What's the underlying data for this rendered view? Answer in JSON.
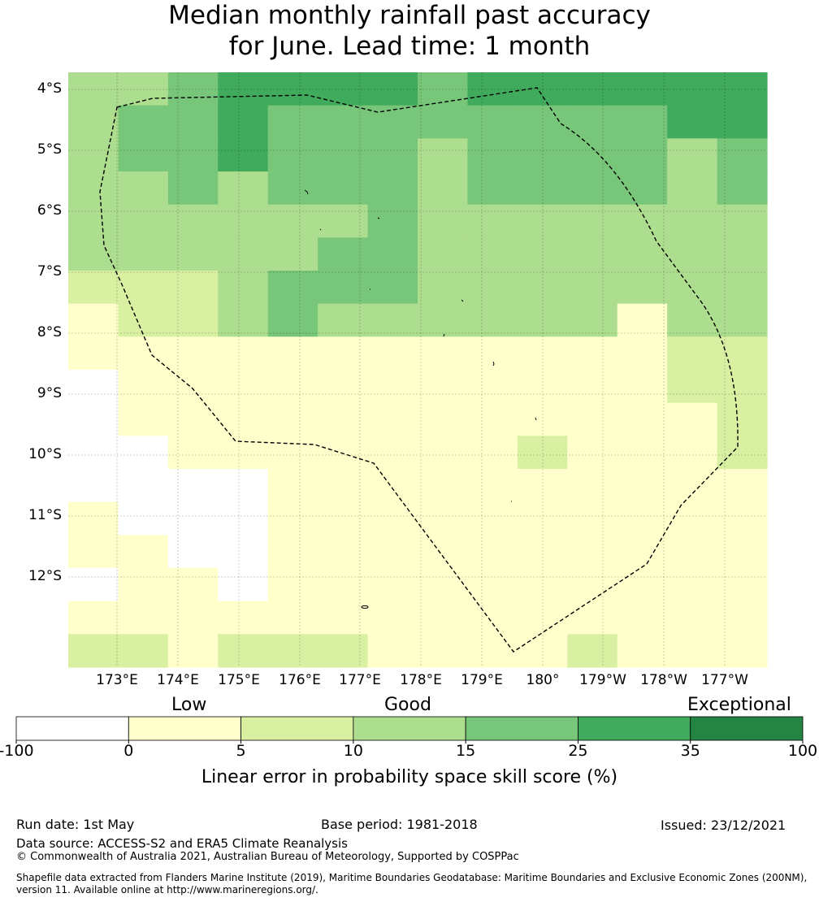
{
  "title": {
    "line1": "Median monthly rainfall past accuracy",
    "line2": "for June. Lead time: 1 month"
  },
  "map": {
    "lat_labels": [
      "4°S",
      "5°S",
      "6°S",
      "7°S",
      "8°S",
      "9°S",
      "10°S",
      "11°S",
      "12°S"
    ],
    "lon_labels": [
      "173°E",
      "174°E",
      "175°E",
      "176°E",
      "177°E",
      "178°E",
      "179°E",
      "180°",
      "179°W",
      "178°W",
      "177°W"
    ],
    "grid": {
      "rows": 18,
      "cols": 14,
      "cell_classes": [
        [
          3,
          3,
          4,
          5,
          5,
          5,
          5,
          4,
          5,
          5,
          5,
          5,
          5,
          5
        ],
        [
          3,
          4,
          4,
          5,
          4,
          4,
          4,
          4,
          4,
          4,
          4,
          4,
          5,
          5
        ],
        [
          3,
          4,
          4,
          5,
          4,
          4,
          4,
          3,
          4,
          4,
          4,
          4,
          3,
          4
        ],
        [
          3,
          3,
          4,
          3,
          4,
          4,
          4,
          3,
          4,
          4,
          4,
          4,
          3,
          4
        ],
        [
          3,
          3,
          3,
          3,
          3,
          3,
          4,
          3,
          3,
          3,
          3,
          3,
          3,
          3
        ],
        [
          3,
          3,
          3,
          3,
          3,
          4,
          4,
          3,
          3,
          3,
          3,
          3,
          3,
          3
        ],
        [
          2,
          2,
          2,
          3,
          4,
          4,
          4,
          3,
          3,
          3,
          3,
          3,
          3,
          3
        ],
        [
          1,
          2,
          2,
          3,
          4,
          3,
          3,
          3,
          3,
          3,
          3,
          1,
          3,
          3
        ],
        [
          1,
          1,
          1,
          1,
          1,
          1,
          1,
          1,
          1,
          1,
          1,
          1,
          2,
          2
        ],
        [
          0,
          1,
          1,
          1,
          1,
          1,
          1,
          1,
          1,
          1,
          1,
          1,
          2,
          2
        ],
        [
          0,
          1,
          1,
          1,
          1,
          1,
          1,
          1,
          1,
          1,
          1,
          1,
          1,
          2
        ],
        [
          0,
          0,
          1,
          1,
          1,
          1,
          1,
          1,
          1,
          2,
          1,
          1,
          1,
          2
        ],
        [
          0,
          0,
          0,
          0,
          1,
          1,
          1,
          1,
          1,
          1,
          1,
          1,
          1,
          1
        ],
        [
          1,
          0,
          0,
          0,
          1,
          1,
          1,
          1,
          1,
          1,
          1,
          1,
          1,
          1
        ],
        [
          1,
          1,
          0,
          0,
          1,
          1,
          1,
          1,
          1,
          1,
          1,
          1,
          1,
          1
        ],
        [
          0,
          1,
          1,
          0,
          1,
          1,
          1,
          1,
          1,
          1,
          1,
          1,
          1,
          1
        ],
        [
          1,
          1,
          1,
          1,
          1,
          1,
          1,
          1,
          1,
          1,
          1,
          1,
          1,
          1
        ],
        [
          2,
          2,
          1,
          2,
          2,
          2,
          1,
          1,
          1,
          1,
          2,
          1,
          1,
          1
        ]
      ]
    }
  },
  "legend": {
    "categories": [
      "Low",
      "Good",
      "Exceptional"
    ],
    "ticks": [
      "-100",
      "0",
      "5",
      "10",
      "15",
      "25",
      "35",
      "100"
    ],
    "colors": [
      "#ffffff",
      "#ffffcc",
      "#d9f0a3",
      "#addd8e",
      "#78c679",
      "#41ab5d",
      "#238443"
    ],
    "title": "Linear error in probability space skill score (%)"
  },
  "footer": {
    "run_date": "Run date: 1st May",
    "base_period": "Base period: 1981-2018",
    "issued": "Issued: 23/12/2021",
    "data_source": "Data source: ACCESS-S2 and ERA5 Climate Reanalysis",
    "copyright": "© Commonwealth of Australia 2021, Australian Bureau of Meteorology, Supported by COSPPac",
    "shapefile_line1": "Shapefile data extracted from Flanders Marine Institute (2019), Maritime Boundaries Geodatabase: Maritime Boundaries and Exclusive Economic Zones (200NM),",
    "shapefile_line2": "version 11. Available online at http://www.marineregions.org/."
  }
}
